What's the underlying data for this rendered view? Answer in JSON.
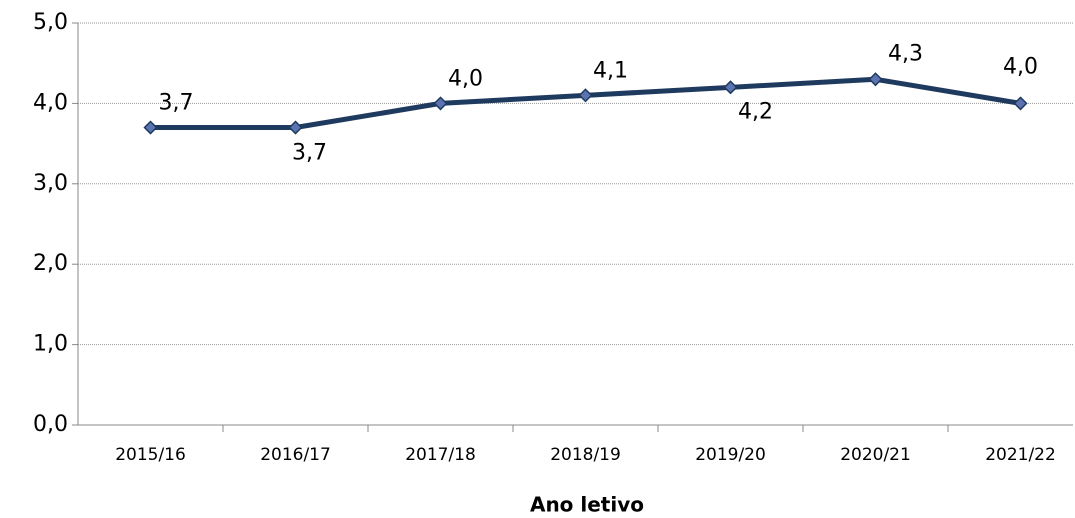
{
  "chart_data": {
    "type": "line",
    "x_label": "Ano letivo",
    "categories": [
      "2015/16",
      "2016/17",
      "2017/18",
      "2018/19",
      "2019/20",
      "2020/21",
      "2021/22"
    ],
    "series": [
      {
        "color": "#1f3a5f",
        "marker_color": "#5b73b0",
        "values": [
          3.7,
          3.7,
          4.0,
          4.1,
          4.2,
          4.3,
          4.0
        ],
        "value_labels": [
          "3,7",
          "3,7",
          "4,0",
          "4,1",
          "4,2",
          "4,3",
          "4,0"
        ]
      }
    ],
    "ylim": [
      0,
      5
    ],
    "yticks": [
      {
        "value": 0,
        "label": "0,0"
      },
      {
        "value": 1,
        "label": "1,0"
      },
      {
        "value": 2,
        "label": "2,0"
      },
      {
        "value": 3,
        "label": "3,0"
      },
      {
        "value": 4,
        "label": "4,0"
      },
      {
        "value": 5,
        "label": "5,0"
      }
    ],
    "grid": true
  }
}
